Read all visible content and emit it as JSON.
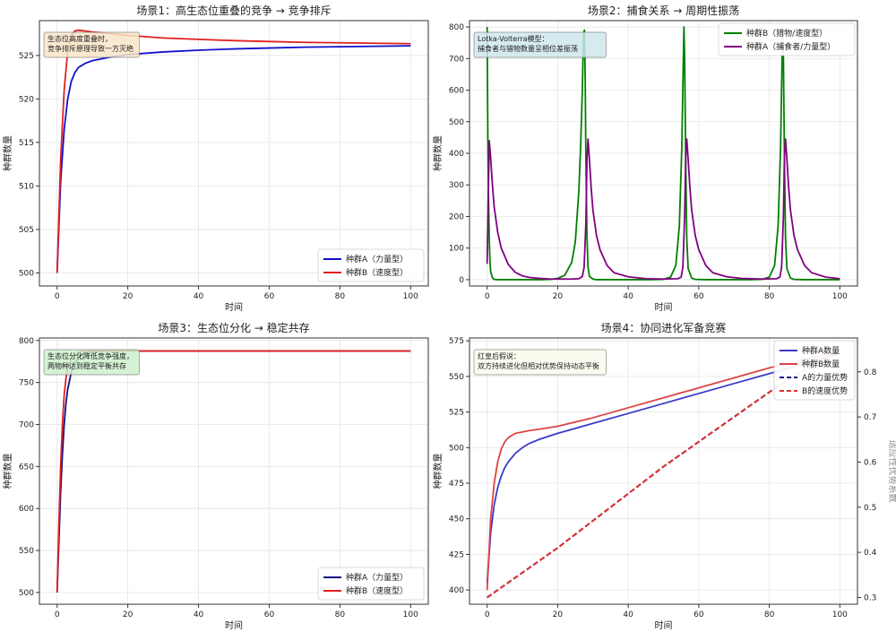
{
  "chart_data": [
    {
      "type": "line",
      "title": "场景1：高生态位重叠的竞争 → 竞争排斥",
      "xlabel": "时间",
      "ylabel": "种群数量",
      "xlim": [
        -5,
        105
      ],
      "ylim": [
        498.5,
        529
      ],
      "xticks": [
        0,
        20,
        40,
        60,
        80,
        100
      ],
      "yticks": [
        500,
        505,
        510,
        515,
        520,
        525
      ],
      "grid": true,
      "legend": "bottom-right",
      "annotation": "生态位高度重叠时，\n竞争排斥原理导致一方灭绝",
      "annotation_color": "#f8e6c8",
      "series": [
        {
          "name": "种群A（力量型）",
          "color": "#1010cc",
          "x": [
            0,
            1,
            2,
            3,
            4,
            5,
            6,
            8,
            10,
            15,
            20,
            30,
            40,
            50,
            60,
            70,
            80,
            90,
            100
          ],
          "y": [
            500,
            510.5,
            516.5,
            520,
            522,
            523,
            523.6,
            524.1,
            524.4,
            524.8,
            525.1,
            525.4,
            525.6,
            525.75,
            525.85,
            525.95,
            526.0,
            526.05,
            526.1
          ]
        },
        {
          "name": "种群B（速度型）",
          "color": "#e02020",
          "x": [
            0,
            1,
            2,
            3,
            4,
            5,
            6,
            8,
            10,
            15,
            20,
            30,
            40,
            50,
            60,
            70,
            80,
            90,
            100
          ],
          "y": [
            500,
            513,
            521,
            525.5,
            527.3,
            527.8,
            527.9,
            527.8,
            527.7,
            527.5,
            527.3,
            527.0,
            526.85,
            526.7,
            526.6,
            526.5,
            526.45,
            526.4,
            526.35
          ]
        }
      ]
    },
    {
      "type": "line",
      "title": "场景2：捕食关系 → 周期性振荡",
      "xlabel": "时间",
      "ylabel": "种群数量",
      "xlim": [
        -5,
        105
      ],
      "ylim": [
        -20,
        820
      ],
      "xticks": [
        0,
        20,
        40,
        60,
        80,
        100
      ],
      "yticks": [
        0,
        100,
        200,
        300,
        400,
        500,
        600,
        700,
        800
      ],
      "grid": true,
      "legend": "top-right",
      "annotation": "Lotka-Volterra模型：\n捕食者与猎物数量呈相位差振荡",
      "annotation_color": "#cfe8ee",
      "series": [
        {
          "name": "种群B（猎物/速度型）",
          "color": "#008000",
          "x": [
            0,
            0.2,
            0.4,
            0.6,
            0.8,
            1,
            1.5,
            2,
            3,
            4,
            6,
            8,
            10,
            15,
            18,
            20,
            22,
            24,
            25,
            26,
            26.5,
            27,
            27.3,
            27.6,
            27.8,
            28,
            28.3,
            28.6,
            29,
            30,
            31,
            34,
            40,
            46,
            50,
            52,
            53.5,
            54.5,
            55.2,
            55.6,
            55.8,
            56,
            56.3,
            56.6,
            57,
            58,
            59,
            62,
            68,
            74,
            78,
            80,
            81.5,
            82.5,
            83.2,
            83.6,
            83.8,
            84,
            84.3,
            84.6,
            85,
            86,
            87,
            90,
            95,
            100
          ],
          "y": [
            800,
            450,
            250,
            130,
            60,
            25,
            6,
            1,
            0,
            0,
            0,
            0,
            0,
            0,
            1,
            4,
            14,
            55,
            120,
            280,
            420,
            600,
            780,
            790,
            640,
            380,
            140,
            40,
            10,
            2,
            0,
            0,
            0,
            0,
            1,
            8,
            45,
            170,
            420,
            680,
            800,
            700,
            380,
            130,
            35,
            5,
            1,
            0,
            0,
            0,
            1,
            8,
            45,
            170,
            420,
            680,
            800,
            700,
            380,
            130,
            35,
            5,
            1,
            0,
            0,
            0
          ]
        },
        {
          "name": "种群A（捕食者/力量型）",
          "color": "#800080",
          "x": [
            0,
            0.3,
            0.6,
            0.9,
            1.5,
            2,
            3,
            4,
            6,
            8,
            10,
            12,
            15,
            18,
            20,
            22,
            24,
            26,
            27,
            27.5,
            28,
            28.3,
            28.6,
            29,
            29.5,
            30,
            31,
            32,
            34,
            36,
            40,
            45,
            50,
            54,
            55,
            55.5,
            56,
            56.3,
            56.6,
            57,
            57.5,
            58,
            59,
            60,
            62,
            64,
            68,
            72,
            78,
            82,
            83,
            83.5,
            84,
            84.3,
            84.6,
            85,
            85.5,
            86,
            87,
            88,
            90,
            92,
            96,
            100
          ],
          "y": [
            50,
            250,
            440,
            400,
            300,
            230,
            150,
            100,
            48,
            23,
            12,
            7,
            4,
            2,
            2,
            2,
            2,
            3,
            10,
            40,
            180,
            380,
            445,
            380,
            290,
            220,
            140,
            95,
            45,
            22,
            9,
            3,
            2,
            3,
            8,
            40,
            200,
            390,
            445,
            380,
            290,
            220,
            140,
            95,
            45,
            22,
            9,
            4,
            2,
            3,
            8,
            40,
            200,
            390,
            445,
            380,
            290,
            220,
            140,
            95,
            45,
            22,
            8,
            3
          ]
        }
      ]
    },
    {
      "type": "line",
      "title": "场景3：生态位分化 → 稳定共存",
      "xlabel": "时间",
      "ylabel": "种群数量",
      "xlim": [
        -5,
        105
      ],
      "ylim": [
        486,
        803
      ],
      "xticks": [
        0,
        20,
        40,
        60,
        80,
        100
      ],
      "yticks": [
        500,
        550,
        600,
        650,
        700,
        750,
        800
      ],
      "grid": true,
      "legend": "bottom-right",
      "annotation": "生态位分化降低竞争强度，\n两物种达到稳定平衡共存",
      "annotation_color": "#cdf0cd",
      "series": [
        {
          "name": "种群A（力量型）",
          "color": "#101080",
          "x": [
            0,
            0.5,
            1,
            1.5,
            2,
            2.5,
            3,
            4,
            5,
            6,
            7,
            8,
            10,
            12,
            15,
            20,
            40,
            60,
            80,
            100
          ],
          "y": [
            500,
            560,
            620,
            665,
            700,
            725,
            742,
            762,
            773,
            779,
            783,
            785,
            786.5,
            787,
            787.3,
            787.5,
            787.5,
            787.5,
            787.5,
            787.5
          ]
        },
        {
          "name": "种群B（速度型）",
          "color": "#e02020",
          "x": [
            0,
            0.5,
            1,
            1.5,
            2,
            2.5,
            3,
            4,
            5,
            6,
            7,
            8,
            10,
            12,
            15,
            20,
            40,
            60,
            80,
            100
          ],
          "y": [
            500,
            580,
            650,
            700,
            735,
            755,
            767,
            778,
            783,
            786,
            787,
            787.5,
            787.6,
            787.6,
            787.6,
            787.6,
            787.6,
            787.6,
            787.6,
            787.6
          ]
        }
      ]
    },
    {
      "type": "line",
      "title": "场景4：协同进化军备竞赛",
      "xlabel": "时间",
      "ylabel": "种群数量",
      "y2label": "适应性优势系数",
      "xlim": [
        -5,
        105
      ],
      "ylim": [
        390,
        577
      ],
      "y2lim": [
        0.285,
        0.875
      ],
      "xticks": [
        0,
        20,
        40,
        60,
        80,
        100
      ],
      "yticks": [
        400,
        425,
        450,
        475,
        500,
        525,
        550,
        575
      ],
      "y2ticks": [
        0.3,
        0.4,
        0.5,
        0.6,
        0.7,
        0.8
      ],
      "grid": true,
      "legend": "top-right",
      "annotation": "红皇后假说：\n双方持续进化但相对优势保持动态平衡",
      "annotation_color": "#fbfbee",
      "series": [
        {
          "name": "种群A数量",
          "color": "#3a3acc",
          "axis": "left",
          "dash": false,
          "x": [
            0,
            1,
            2,
            3,
            4,
            5,
            6,
            8,
            10,
            12,
            15,
            20,
            30,
            40,
            50,
            60,
            70,
            80,
            90,
            100
          ],
          "y": [
            405,
            440,
            460,
            472,
            480,
            486,
            490,
            496,
            500,
            503,
            506,
            510,
            517,
            524,
            531,
            538,
            545,
            552,
            559,
            566
          ]
        },
        {
          "name": "种群B数量",
          "color": "#dd4444",
          "axis": "left",
          "dash": false,
          "x": [
            0,
            1,
            2,
            3,
            4,
            5,
            6,
            8,
            10,
            12,
            15,
            20,
            30,
            40,
            50,
            60,
            70,
            80,
            90,
            100
          ],
          "y": [
            400,
            450,
            475,
            490,
            499,
            504,
            507,
            510,
            511,
            512,
            513,
            515,
            521,
            528,
            535,
            542,
            549,
            556,
            562,
            567
          ]
        },
        {
          "name": "A的力量优势",
          "color": "#1a1a8a",
          "axis": "right",
          "dash": true,
          "x": [
            0,
            10,
            20,
            30,
            40,
            50,
            60,
            70,
            80,
            90,
            100
          ],
          "y": [
            0.3,
            0.355,
            0.41,
            0.47,
            0.53,
            0.59,
            0.645,
            0.7,
            0.755,
            0.805,
            0.845
          ]
        },
        {
          "name": "B的速度优势",
          "color": "#e03030",
          "axis": "right",
          "dash": true,
          "x": [
            0,
            10,
            20,
            30,
            40,
            50,
            60,
            70,
            80,
            90,
            100
          ],
          "y": [
            0.3,
            0.355,
            0.41,
            0.47,
            0.53,
            0.59,
            0.645,
            0.7,
            0.755,
            0.805,
            0.845
          ]
        }
      ]
    }
  ]
}
